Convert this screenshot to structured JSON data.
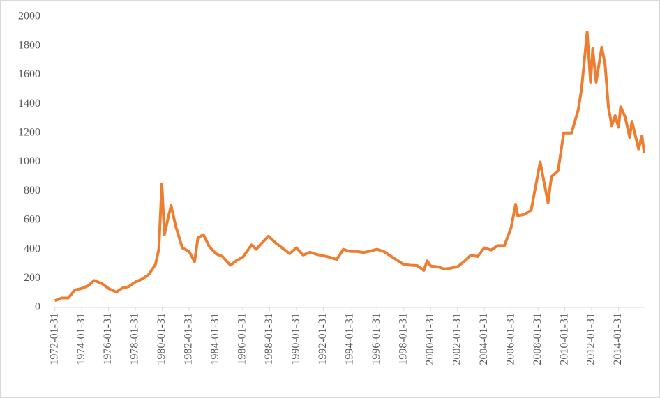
{
  "chart_data": {
    "type": "line",
    "x": [
      "1972-01-31",
      "1972-07-31",
      "1973-01-31",
      "1973-07-31",
      "1974-01-31",
      "1974-07-31",
      "1974-12-31",
      "1975-07-31",
      "1976-01-31",
      "1976-08-31",
      "1977-01-31",
      "1977-07-31",
      "1978-01-31",
      "1978-07-31",
      "1979-01-31",
      "1979-07-31",
      "1979-10-31",
      "1980-01-21",
      "1980-03-31",
      "1980-07-31",
      "1980-09-30",
      "1981-01-31",
      "1981-07-31",
      "1982-01-31",
      "1982-06-30",
      "1982-09-30",
      "1983-02-28",
      "1983-07-31",
      "1984-01-31",
      "1984-07-31",
      "1985-02-28",
      "1985-07-31",
      "1986-01-31",
      "1986-09-30",
      "1987-01-31",
      "1987-07-31",
      "1987-12-31",
      "1988-07-31",
      "1989-01-31",
      "1989-07-31",
      "1990-01-31",
      "1990-07-31",
      "1991-01-31",
      "1991-07-31",
      "1992-01-31",
      "1992-07-31",
      "1993-01-31",
      "1993-07-31",
      "1994-01-31",
      "1994-07-31",
      "1995-01-31",
      "1995-07-31",
      "1996-01-31",
      "1996-07-31",
      "1997-01-31",
      "1997-07-31",
      "1998-01-31",
      "1998-07-31",
      "1999-01-31",
      "1999-07-31",
      "1999-10-31",
      "2000-01-31",
      "2000-07-31",
      "2001-01-31",
      "2001-07-31",
      "2002-01-31",
      "2002-07-31",
      "2003-01-31",
      "2003-07-31",
      "2004-01-31",
      "2004-07-31",
      "2005-01-31",
      "2005-07-31",
      "2006-01-31",
      "2006-05-31",
      "2006-07-31",
      "2007-01-31",
      "2007-07-31",
      "2008-01-31",
      "2008-03-31",
      "2008-10-31",
      "2009-01-31",
      "2009-07-31",
      "2009-12-31",
      "2010-07-31",
      "2011-01-31",
      "2011-04-30",
      "2011-09-30",
      "2011-12-31",
      "2012-02-29",
      "2012-05-31",
      "2012-10-31",
      "2013-01-31",
      "2013-04-30",
      "2013-07-31",
      "2013-10-31",
      "2014-01-31",
      "2014-03-31",
      "2014-07-31",
      "2014-11-30",
      "2015-01-31",
      "2015-07-31",
      "2015-10-31",
      "2015-12-31"
    ],
    "series": [
      {
        "color": "#ed7d31",
        "values": [
          46,
          65,
          65,
          120,
          130,
          150,
          185,
          165,
          130,
          105,
          132,
          143,
          175,
          195,
          227,
          296,
          400,
          850,
          500,
          640,
          700,
          560,
          410,
          385,
          315,
          480,
          500,
          420,
          370,
          350,
          290,
          320,
          345,
          430,
          400,
          450,
          490,
          440,
          405,
          370,
          410,
          360,
          380,
          365,
          355,
          345,
          330,
          400,
          385,
          385,
          378,
          387,
          400,
          385,
          355,
          325,
          295,
          290,
          288,
          255,
          320,
          285,
          280,
          265,
          270,
          280,
          315,
          360,
          350,
          410,
          395,
          425,
          425,
          550,
          710,
          630,
          640,
          670,
          920,
          1000,
          720,
          900,
          940,
          1200,
          1200,
          1360,
          1500,
          1895,
          1550,
          1780,
          1550,
          1790,
          1670,
          1380,
          1250,
          1320,
          1240,
          1380,
          1310,
          1170,
          1280,
          1090,
          1180,
          1060
        ]
      }
    ],
    "xlim": [
      "1971-12-31",
      "2016-01-31"
    ],
    "xticks": [
      "1972-01-31",
      "1974-01-31",
      "1976-01-31",
      "1978-01-31",
      "1980-01-31",
      "1982-01-31",
      "1984-01-31",
      "1986-01-31",
      "1988-01-31",
      "1990-01-31",
      "1992-01-31",
      "1994-01-31",
      "1996-01-31",
      "1998-01-31",
      "2000-01-31",
      "2002-01-31",
      "2004-01-31",
      "2006-01-31",
      "2008-01-31",
      "2010-01-31",
      "2012-01-31",
      "2014-01-31"
    ],
    "ylim": [
      0,
      2000
    ],
    "yticks": [
      0,
      200,
      400,
      600,
      800,
      1000,
      1200,
      1400,
      1600,
      1800,
      2000
    ],
    "grid": false
  }
}
